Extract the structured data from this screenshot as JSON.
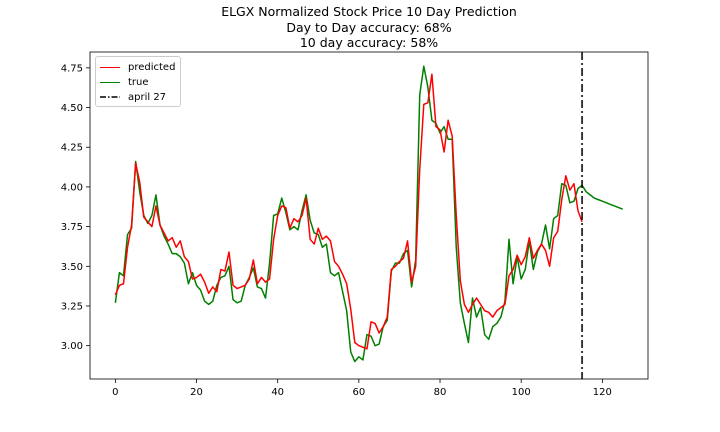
{
  "figure": {
    "title_lines": [
      "ELGX Normalized Stock Price 10 Day Prediction",
      "Day to Day accuracy: 68%",
      "10 day accuracy: 58%"
    ]
  },
  "chart_data": {
    "type": "line",
    "title": "ELGX Normalized Stock Price 10 Day Prediction\nDay to Day accuracy: 68%\n10 day accuracy: 58%",
    "xlabel": "",
    "ylabel": "",
    "xlim": [
      -6.25,
      131.25
    ],
    "ylim": [
      2.79,
      4.85
    ],
    "x_ticks": [
      0,
      20,
      40,
      60,
      80,
      100,
      120
    ],
    "y_ticks": [
      3.0,
      3.25,
      3.5,
      3.75,
      4.0,
      4.25,
      4.5,
      4.75
    ],
    "y_tick_labels": [
      "3.00",
      "3.25",
      "3.50",
      "3.75",
      "4.00",
      "4.25",
      "4.50",
      "4.75"
    ],
    "grid": false,
    "legend_position": "top-left",
    "vline": {
      "x": 115,
      "label": "april 27",
      "color": "#000000",
      "style": "dash-dot"
    },
    "series": [
      {
        "name": "predicted",
        "color": "#ff0000",
        "x_start": 0,
        "values": [
          3.32,
          3.38,
          3.39,
          3.62,
          3.76,
          4.15,
          4.03,
          3.81,
          3.78,
          3.75,
          3.88,
          3.76,
          3.71,
          3.66,
          3.68,
          3.62,
          3.66,
          3.56,
          3.53,
          3.42,
          3.43,
          3.45,
          3.4,
          3.33,
          3.37,
          3.34,
          3.48,
          3.47,
          3.59,
          3.38,
          3.36,
          3.37,
          3.38,
          3.42,
          3.54,
          3.39,
          3.43,
          3.4,
          3.42,
          3.67,
          3.82,
          3.88,
          3.87,
          3.74,
          3.8,
          3.78,
          3.82,
          3.93,
          3.67,
          3.64,
          3.74,
          3.67,
          3.69,
          3.66,
          3.53,
          3.5,
          3.45,
          3.39,
          3.23,
          3.02,
          3.0,
          2.99,
          2.98,
          3.15,
          3.14,
          3.08,
          3.12,
          3.18,
          3.48,
          3.5,
          3.53,
          3.55,
          3.66,
          3.4,
          3.5,
          4.11,
          4.52,
          4.53,
          4.71,
          4.38,
          4.36,
          4.22,
          4.42,
          4.32,
          3.82,
          3.41,
          3.26,
          3.21,
          3.26,
          3.3,
          3.26,
          3.22,
          3.21,
          3.18,
          3.22,
          3.24,
          3.26,
          3.44,
          3.48,
          3.57,
          3.51,
          3.56,
          3.68,
          3.55,
          3.6,
          3.64,
          3.6,
          3.5,
          3.68,
          3.72,
          3.92,
          4.07,
          3.98,
          4.02,
          3.85,
          3.78
        ]
      },
      {
        "name": "true",
        "color": "#008000",
        "x_start": 0,
        "values": [
          3.27,
          3.46,
          3.44,
          3.7,
          3.74,
          4.16,
          3.97,
          3.82,
          3.77,
          3.82,
          3.95,
          3.76,
          3.69,
          3.64,
          3.58,
          3.58,
          3.56,
          3.52,
          3.39,
          3.46,
          3.38,
          3.35,
          3.28,
          3.26,
          3.28,
          3.38,
          3.43,
          3.44,
          3.5,
          3.29,
          3.27,
          3.28,
          3.38,
          3.43,
          3.49,
          3.37,
          3.36,
          3.3,
          3.52,
          3.82,
          3.83,
          3.93,
          3.84,
          3.73,
          3.75,
          3.73,
          3.85,
          3.95,
          3.79,
          3.71,
          3.7,
          3.62,
          3.64,
          3.46,
          3.44,
          3.46,
          3.34,
          3.22,
          2.96,
          2.9,
          2.93,
          2.91,
          3.07,
          3.06,
          3.0,
          3.01,
          3.12,
          3.16,
          3.47,
          3.52,
          3.52,
          3.58,
          3.6,
          3.37,
          3.54,
          4.58,
          4.76,
          4.63,
          4.42,
          4.4,
          4.34,
          4.38,
          4.3,
          4.3,
          3.62,
          3.27,
          3.14,
          3.02,
          3.3,
          3.18,
          3.24,
          3.07,
          3.04,
          3.12,
          3.14,
          3.18,
          3.28,
          3.67,
          3.39,
          3.56,
          3.42,
          3.48,
          3.66,
          3.48,
          3.59,
          3.64,
          3.76,
          3.61,
          3.8,
          3.82,
          4.02,
          4.01,
          3.9,
          3.91,
          3.99,
          4.01
        ]
      },
      {
        "name": "",
        "color": "#008000",
        "x_start": 115,
        "values": [
          4.01,
          3.97,
          3.95,
          3.93,
          3.92,
          3.91,
          3.9,
          3.89,
          3.88,
          3.87,
          3.86
        ]
      }
    ]
  }
}
